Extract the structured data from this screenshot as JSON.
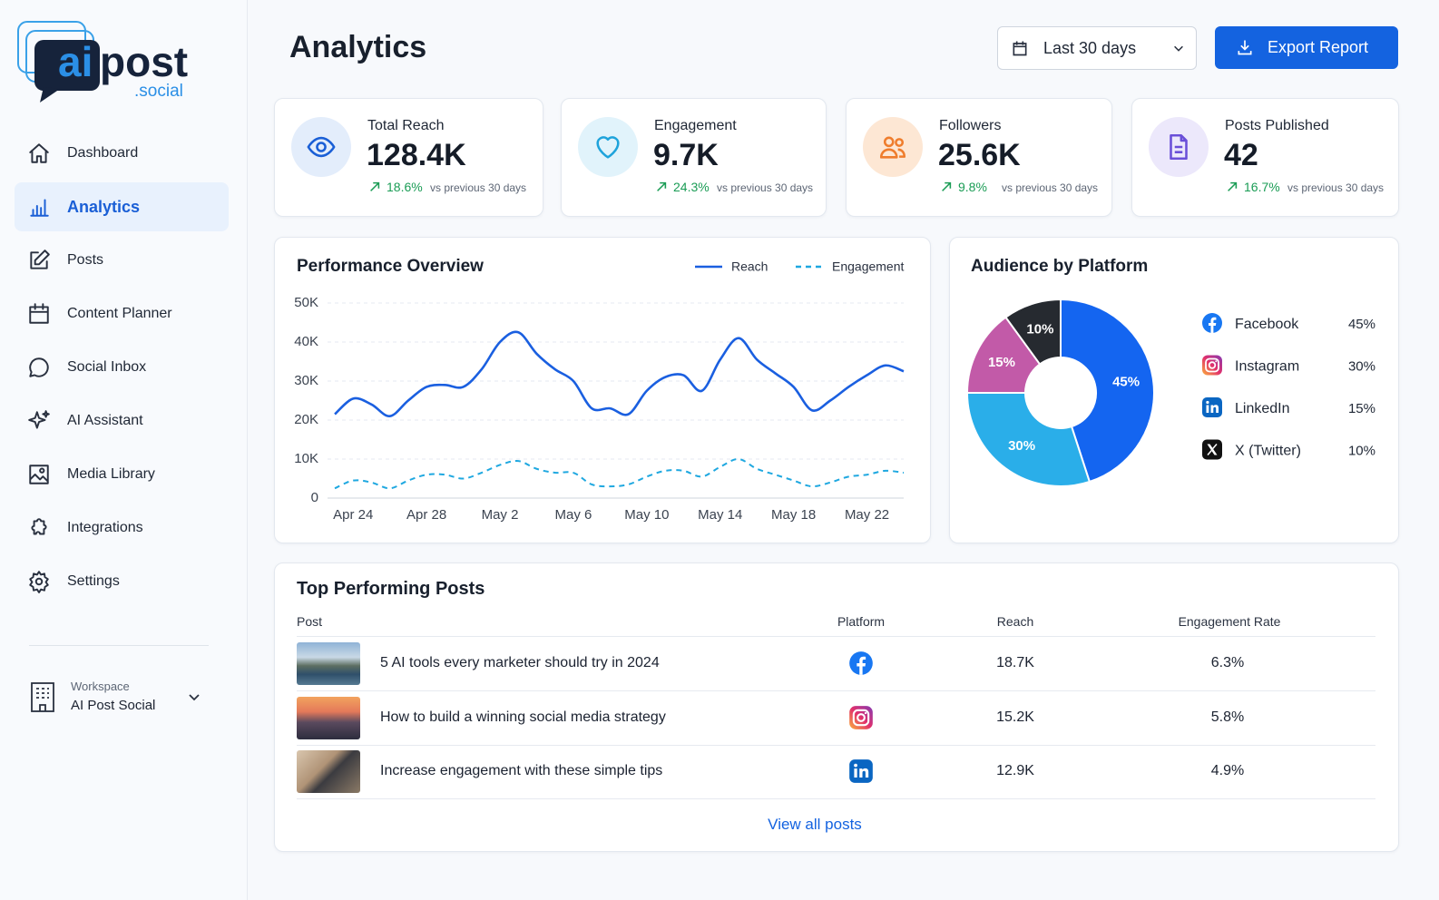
{
  "sidebar": {
    "logo": {
      "ai": "ai",
      "post": "post",
      "suffix": ".social"
    },
    "nav": [
      {
        "label": "Dashboard"
      },
      {
        "label": "Analytics",
        "active": true
      },
      {
        "label": "Posts"
      },
      {
        "label": "Content Planner"
      },
      {
        "label": "Social Inbox"
      },
      {
        "label": "AI Assistant"
      },
      {
        "label": "Media Library"
      },
      {
        "label": "Integrations"
      },
      {
        "label": "Settings"
      }
    ],
    "workspace": {
      "label": "Workspace",
      "name": "AI Post Social"
    }
  },
  "header": {
    "title": "Analytics",
    "date_range": "Last 30 days",
    "export": "Export Report"
  },
  "kpis": [
    {
      "label": "Total Reach",
      "value": "128.4K",
      "change": "18.6%",
      "note": "vs previous 30 days"
    },
    {
      "label": "Engagement",
      "value": "9.7K",
      "change": "24.3%",
      "note": "vs previous 30 days"
    },
    {
      "label": "Followers",
      "value": "25.6K",
      "change": "9.8%",
      "note": "vs previous 30 days"
    },
    {
      "label": "Posts Published",
      "value": "42",
      "change": "16.7%",
      "note": "vs previous 30 days"
    }
  ],
  "chart_data": [
    {
      "type": "line",
      "title": "Performance Overview",
      "categories": [
        null,
        "Apr 24",
        null,
        null,
        null,
        "Apr 28",
        null,
        null,
        null,
        "May 2",
        null,
        null,
        null,
        "May 6",
        null,
        null,
        null,
        "May 10",
        null,
        null,
        null,
        "May 14",
        null,
        null,
        null,
        "May 18",
        null,
        null,
        null,
        "May 22",
        null,
        null
      ],
      "series": [
        {
          "name": "Reach",
          "color": "#1a5fe0",
          "style": "solid",
          "values": [
            21500,
            25500,
            24000,
            21000,
            25000,
            28500,
            29000,
            28500,
            33000,
            40000,
            42500,
            37000,
            33000,
            30000,
            23000,
            23000,
            21500,
            27500,
            31000,
            31500,
            27500,
            35500,
            41000,
            35500,
            32000,
            28500,
            22500,
            25000,
            28500,
            31500,
            34000,
            32500
          ]
        },
        {
          "name": "Engagement",
          "color": "#1fa8e0",
          "style": "dashed",
          "values": [
            2500,
            4500,
            4000,
            2500,
            4500,
            6000,
            6000,
            5000,
            6500,
            8500,
            9500,
            7500,
            6500,
            6500,
            3500,
            3000,
            3500,
            5500,
            7000,
            7000,
            5500,
            8000,
            10000,
            7500,
            6000,
            4500,
            3000,
            4000,
            5500,
            6000,
            7000,
            6500
          ]
        }
      ],
      "ylim": [
        0,
        50000
      ],
      "yticks": [
        0,
        {
          "value": 10000,
          "label": "10K"
        },
        {
          "value": 20000,
          "label": "20K"
        },
        {
          "value": 30000,
          "label": "30K"
        },
        {
          "value": 40000,
          "label": "40K"
        },
        {
          "value": 50000,
          "label": "50K"
        }
      ],
      "grid": true
    },
    {
      "type": "pie",
      "title": "Audience by Platform",
      "categories": [
        "Facebook",
        "Instagram",
        "LinkedIn",
        "X (Twitter)"
      ],
      "values": [
        45,
        30,
        15,
        10
      ],
      "value_labels": [
        "45%",
        "30%",
        "15%",
        "10%"
      ],
      "colors": [
        "#1465f0",
        "#2aaee9",
        "#c25aa8",
        "#262a30"
      ],
      "donut": true
    }
  ],
  "top_posts": {
    "title": "Top Performing Posts",
    "columns": [
      "Post",
      "Platform",
      "Reach",
      "Engagement Rate"
    ],
    "rows": [
      {
        "title": "5 AI tools every marketer should try in 2024",
        "reach": "18.7K",
        "engagement_rate": "6.3%"
      },
      {
        "title": "How to build a winning social media strategy",
        "reach": "15.2K",
        "engagement_rate": "5.8%"
      },
      {
        "title": "Increase engagement with these simple tips",
        "reach": "12.9K",
        "engagement_rate": "4.9%"
      }
    ],
    "link": "View all posts"
  }
}
